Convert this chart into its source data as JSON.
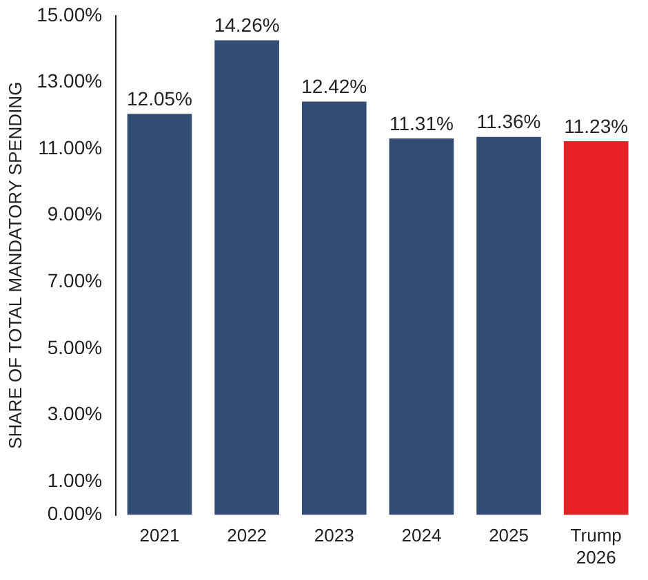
{
  "chart_data": {
    "type": "bar",
    "ylabel": "SHARE OF TOTAL MANDATORY SPENDING",
    "categories": [
      "2021",
      "2022",
      "2023",
      "2024",
      "2025",
      "Trump 2026"
    ],
    "values": [
      12.05,
      14.26,
      12.42,
      11.31,
      11.36,
      11.23
    ],
    "colors": [
      "#334d74",
      "#334d74",
      "#334d74",
      "#334d74",
      "#334d74",
      "#e82026"
    ],
    "value_labels": [
      "12.05%",
      "14.26%",
      "12.42%",
      "11.31%",
      "11.36%",
      "11.23%"
    ],
    "ylim": [
      0,
      15
    ],
    "yticks": [
      {
        "value": 0,
        "label": "0.00%"
      },
      {
        "value": 1,
        "label": "1.00%"
      },
      {
        "value": 3,
        "label": "3.00%"
      },
      {
        "value": 5,
        "label": "5.00%"
      },
      {
        "value": 7,
        "label": "7.00%"
      },
      {
        "value": 9,
        "label": "9.00%"
      },
      {
        "value": 11,
        "label": "11.00%"
      },
      {
        "value": 13,
        "label": "13.00%"
      },
      {
        "value": 15,
        "label": "15.00%"
      }
    ],
    "grid": false,
    "legend": false
  }
}
